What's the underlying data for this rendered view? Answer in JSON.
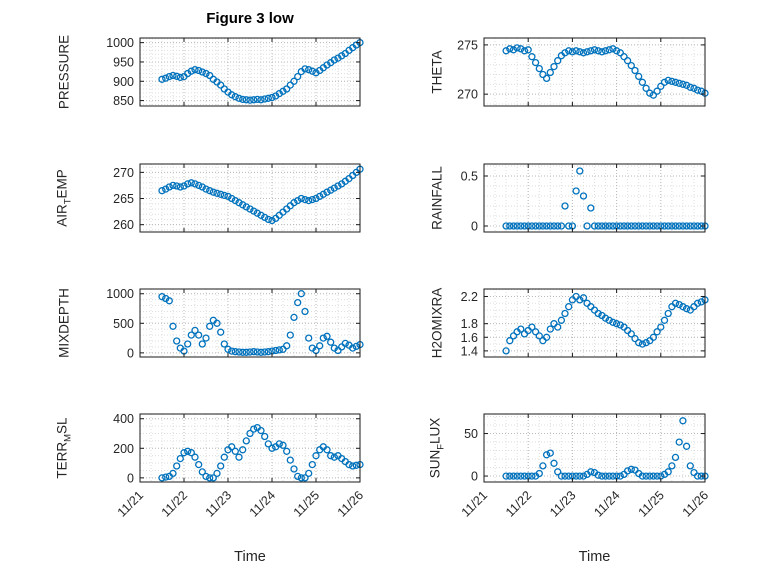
{
  "figure": {
    "title": "Figure 3 low",
    "xlabel": "Time",
    "colors": {
      "marker": "#0072BD",
      "grid_major": "#b9b9b9",
      "grid_minor": "#dedede",
      "axis": "#1a1a1a",
      "text": "#262626",
      "background": "#ffffff"
    }
  },
  "chart_data": {
    "type": "scatter",
    "marker": "open-circle",
    "x_axis_label": "Time",
    "x": [
      0.5,
      0.583,
      0.667,
      0.75,
      0.833,
      0.917,
      1,
      1.083,
      1.167,
      1.25,
      1.333,
      1.417,
      1.5,
      1.583,
      1.667,
      1.75,
      1.833,
      1.917,
      2,
      2.083,
      2.167,
      2.25,
      2.333,
      2.417,
      2.5,
      2.583,
      2.667,
      2.75,
      2.833,
      2.917,
      3,
      3.083,
      3.167,
      3.25,
      3.333,
      3.417,
      3.5,
      3.583,
      3.667,
      3.75,
      3.833,
      3.917,
      4,
      4.083,
      4.167,
      4.25,
      4.333,
      4.417,
      4.5,
      4.583,
      4.667,
      4.75,
      4.833,
      4.917,
      5
    ],
    "xlim": [
      0,
      5
    ],
    "xticks": [
      0,
      1,
      2,
      3,
      4,
      5
    ],
    "xticklabels": [
      "11/21",
      "11/22",
      "11/23",
      "11/24",
      "11/25",
      "11/26"
    ],
    "x_minor_step": 0.25,
    "subplots": [
      {
        "id": "pressure",
        "row": 0,
        "col": 0,
        "ylabel": {
          "pre": "PRESSURE",
          "sub": "",
          "post": ""
        },
        "ylim": [
          836,
          1012
        ],
        "yticks": [
          850,
          900,
          950,
          1000
        ],
        "y_minor_step": 10,
        "values": [
          905,
          908,
          912,
          915,
          913,
          910,
          912,
          920,
          926,
          930,
          928,
          924,
          920,
          915,
          905,
          898,
          890,
          880,
          872,
          865,
          860,
          856,
          853,
          852,
          851,
          852,
          853,
          852,
          854,
          856,
          858,
          862,
          868,
          874,
          880,
          890,
          900,
          912,
          925,
          932,
          930,
          926,
          922,
          928,
          935,
          942,
          948,
          955,
          960,
          966,
          972,
          980,
          987,
          994,
          1000
        ]
      },
      {
        "id": "theta",
        "row": 0,
        "col": 1,
        "ylabel": {
          "pre": "THETA",
          "sub": "",
          "post": ""
        },
        "ylim": [
          268.8,
          275.7
        ],
        "yticks": [
          270,
          275
        ],
        "y_minor_step": 1,
        "values": [
          274.4,
          274.6,
          274.5,
          274.7,
          274.6,
          274.4,
          274.5,
          273.8,
          273.2,
          272.6,
          272,
          271.6,
          272.2,
          272.8,
          273.4,
          273.9,
          274.2,
          274.4,
          274.3,
          274.4,
          274.3,
          274.2,
          274.3,
          274.4,
          274.5,
          274.4,
          274.3,
          274.4,
          274.5,
          274.6,
          274.4,
          274.2,
          273.8,
          273.4,
          272.9,
          272.4,
          271.8,
          271.2,
          270.6,
          270.1,
          269.9,
          270.3,
          270.8,
          271.2,
          271.4,
          271.3,
          271.2,
          271.1,
          271,
          270.9,
          270.7,
          270.6,
          270.4,
          270.3,
          270.1
        ]
      },
      {
        "id": "air-temp",
        "row": 1,
        "col": 0,
        "ylabel": {
          "pre": "AIR",
          "sub": "T",
          "post": "EMP"
        },
        "ylim": [
          258.6,
          271.6
        ],
        "yticks": [
          260,
          265,
          270
        ],
        "y_minor_step": 1,
        "values": [
          266.5,
          266.8,
          267.2,
          267.5,
          267.4,
          267.2,
          267.4,
          267.8,
          268,
          267.8,
          267.5,
          267.2,
          266.8,
          266.5,
          266.2,
          266,
          265.8,
          265.6,
          265.4,
          265,
          264.6,
          264.2,
          263.8,
          263.4,
          263,
          262.6,
          262.2,
          261.8,
          261.4,
          261,
          260.8,
          261.2,
          261.8,
          262.4,
          263,
          263.6,
          264.2,
          264.6,
          265,
          264.8,
          264.6,
          264.8,
          265,
          265.4,
          265.8,
          266.2,
          266.6,
          267,
          267.4,
          267.8,
          268.3,
          268.8,
          269.4,
          270,
          270.6
        ]
      },
      {
        "id": "rainfall",
        "row": 1,
        "col": 1,
        "ylabel": {
          "pre": "RAINFALL",
          "sub": "",
          "post": ""
        },
        "ylim": [
          -0.06,
          0.62
        ],
        "yticks": [
          0,
          0.5
        ],
        "y_minor_step": 0.1,
        "values": [
          0,
          0,
          0,
          0,
          0,
          0,
          0,
          0,
          0,
          0,
          0,
          0,
          0,
          0,
          0,
          0,
          0.2,
          0,
          0,
          0.35,
          0.55,
          0.3,
          0,
          0.18,
          0,
          0,
          0,
          0,
          0,
          0,
          0,
          0,
          0,
          0,
          0,
          0,
          0,
          0,
          0,
          0,
          0,
          0,
          0,
          0,
          0,
          0,
          0,
          0,
          0,
          0,
          0,
          0,
          0,
          0,
          0
        ]
      },
      {
        "id": "mixdepth",
        "row": 2,
        "col": 0,
        "ylabel": {
          "pre": "MIXDEPTH",
          "sub": "",
          "post": ""
        },
        "ylim": [
          -70,
          1080
        ],
        "yticks": [
          0,
          500,
          1000
        ],
        "y_minor_step": 100,
        "values": [
          950,
          920,
          880,
          450,
          200,
          80,
          30,
          150,
          300,
          380,
          300,
          150,
          250,
          450,
          550,
          500,
          350,
          150,
          60,
          30,
          20,
          15,
          10,
          10,
          15,
          20,
          15,
          10,
          15,
          20,
          30,
          40,
          50,
          60,
          120,
          300,
          600,
          850,
          1000,
          700,
          250,
          80,
          40,
          120,
          250,
          280,
          180,
          80,
          40,
          100,
          160,
          130,
          80,
          110,
          140
        ]
      },
      {
        "id": "h2omixra",
        "row": 2,
        "col": 1,
        "ylabel": {
          "pre": "H2OMIXRA",
          "sub": "",
          "post": ""
        },
        "ylim": [
          1.31,
          2.31
        ],
        "yticks": [
          1.4,
          1.6,
          1.8,
          2.2
        ],
        "y_minor_step": 0.1,
        "values": [
          1.4,
          1.55,
          1.62,
          1.68,
          1.72,
          1.65,
          1.7,
          1.75,
          1.68,
          1.62,
          1.55,
          1.6,
          1.72,
          1.8,
          1.75,
          1.85,
          1.95,
          2.05,
          2.15,
          2.2,
          2.15,
          2.18,
          2.1,
          2.05,
          2,
          1.95,
          1.92,
          1.88,
          1.85,
          1.82,
          1.8,
          1.78,
          1.75,
          1.7,
          1.65,
          1.58,
          1.52,
          1.5,
          1.52,
          1.55,
          1.6,
          1.68,
          1.75,
          1.85,
          1.95,
          2.05,
          2.1,
          2.08,
          2.05,
          2.02,
          2,
          2.05,
          2.1,
          2.12,
          2.15
        ]
      },
      {
        "id": "terr-msl",
        "row": 3,
        "col": 0,
        "ylabel": {
          "pre": "TERR",
          "sub": "M",
          "post": "SL"
        },
        "ylim": [
          -28,
          432
        ],
        "yticks": [
          0,
          200,
          400
        ],
        "y_minor_step": 50,
        "values": [
          0,
          5,
          10,
          30,
          80,
          130,
          170,
          180,
          170,
          140,
          90,
          40,
          10,
          0,
          0,
          30,
          80,
          140,
          190,
          210,
          180,
          140,
          190,
          250,
          300,
          330,
          340,
          320,
          280,
          230,
          200,
          210,
          230,
          220,
          180,
          120,
          60,
          10,
          0,
          0,
          30,
          90,
          150,
          190,
          210,
          190,
          150,
          140,
          150,
          130,
          110,
          90,
          80,
          85,
          90
        ]
      },
      {
        "id": "sun-flux",
        "row": 3,
        "col": 1,
        "ylabel": {
          "pre": "SUN",
          "sub": "F",
          "post": "LUX"
        },
        "ylim": [
          -7,
          73
        ],
        "yticks": [
          0,
          50
        ],
        "y_minor_step": 10,
        "values": [
          0,
          0,
          0,
          0,
          0,
          0,
          0,
          0,
          0,
          3,
          12,
          25,
          27,
          15,
          5,
          0,
          0,
          0,
          0,
          0,
          0,
          0,
          2,
          5,
          4,
          1,
          0,
          0,
          0,
          0,
          0,
          0,
          2,
          6,
          8,
          7,
          3,
          0,
          0,
          0,
          0,
          0,
          0,
          2,
          5,
          12,
          22,
          40,
          65,
          35,
          12,
          4,
          0,
          0,
          0
        ]
      }
    ]
  }
}
